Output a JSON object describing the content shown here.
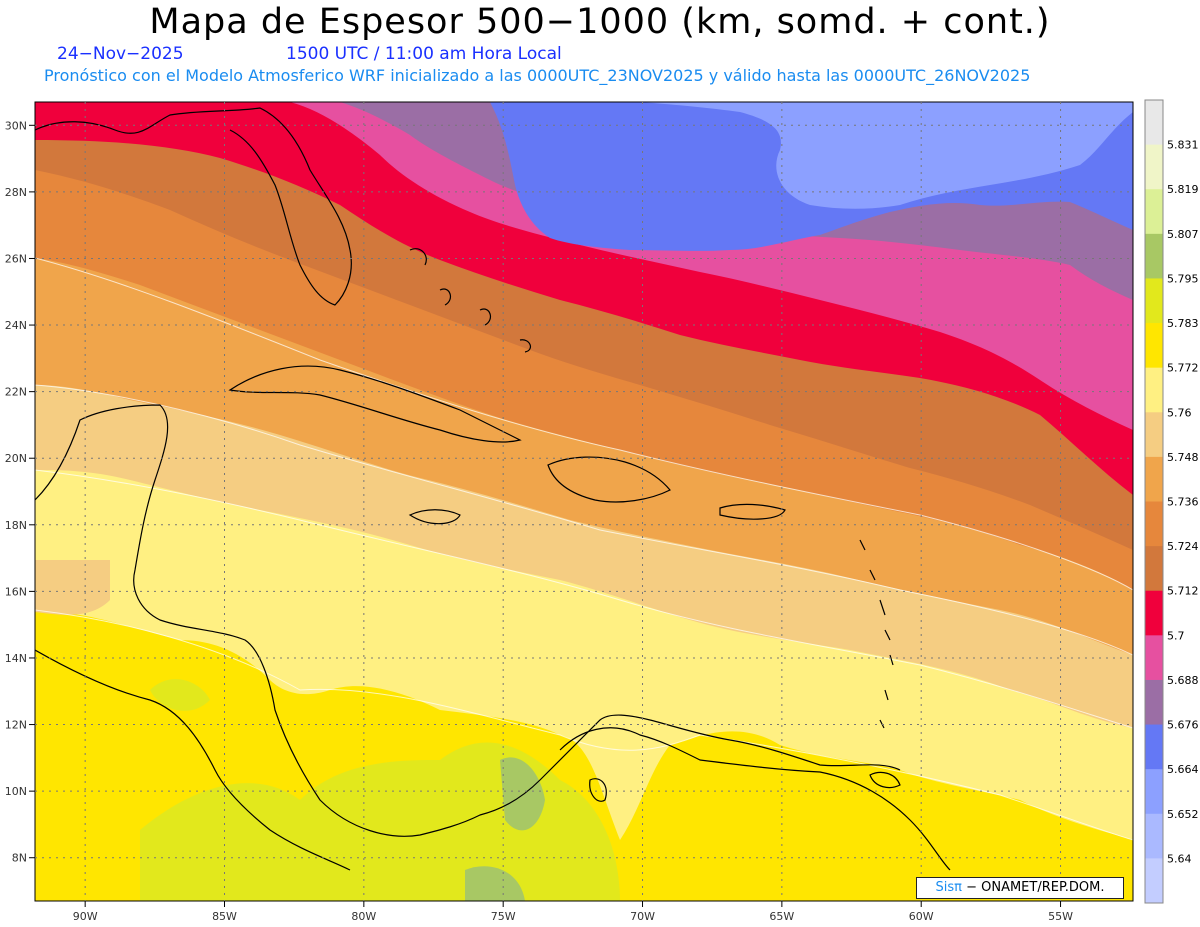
{
  "title": "Mapa de Espesor 500−1000 (km, somd. + cont.)",
  "date": "24−Nov−2025",
  "time": "1500 UTC / 11:00 am Hora Local",
  "subtitle": "Pronóstico con el Modelo Atmosferico WRF inicializado a las 0000UTC_23NOV2025 y válido hasta las  0000UTC_26NOV2025",
  "credit": {
    "logo": "Sisπ",
    "text": "− ONAMET/REP.DOM."
  },
  "axes": {
    "lon_labels": [
      "90W",
      "85W",
      "80W",
      "75W",
      "70W",
      "65W",
      "60W",
      "55W"
    ],
    "lat_labels": [
      "30N",
      "28N",
      "26N",
      "24N",
      "22N",
      "20N",
      "18N",
      "16N",
      "14N",
      "12N",
      "10N",
      "8N"
    ],
    "lon_values": [
      -90,
      -85,
      -80,
      -75,
      -70,
      -65,
      -60,
      -55
    ],
    "lat_values": [
      30,
      28,
      26,
      24,
      22,
      20,
      18,
      16,
      14,
      12,
      10,
      8
    ],
    "lon_range": [
      -91.8,
      -52.4
    ],
    "lat_range": [
      6.7,
      30.7
    ]
  },
  "colorbar": {
    "labels": [
      "5.831",
      "5.819",
      "5.807",
      "5.795",
      "5.783",
      "5.772",
      "5.76",
      "5.748",
      "5.736",
      "5.724",
      "5.712",
      "5.7",
      "5.688",
      "5.676",
      "5.664",
      "5.652",
      "5.64"
    ],
    "colors": [
      "#e8e8e8",
      "#f0f5c8",
      "#dcf096",
      "#a8c864",
      "#e2e81c",
      "#ffe600",
      "#fff082",
      "#f5cd82",
      "#f0a54b",
      "#e6873c",
      "#d2783c",
      "#f0003c",
      "#e650a0",
      "#9b6ea5",
      "#6478f5",
      "#8ca0ff",
      "#aab9ff",
      "#c3cdff"
    ]
  },
  "colors": {
    "band_yellow": "#ffe600",
    "band_light_yellow": "#fff082",
    "band_tan": "#f5cd82",
    "band_orange": "#f0a54b",
    "band_dark_orange": "#e6873c",
    "band_red": "#f0003c",
    "band_pink": "#e650a0",
    "band_purple": "#9b6ea5",
    "band_blue": "#6478f5",
    "band_light_blue": "#8ca0ff",
    "band_green_yellow": "#e2e81c",
    "band_green": "#a8c864"
  }
}
